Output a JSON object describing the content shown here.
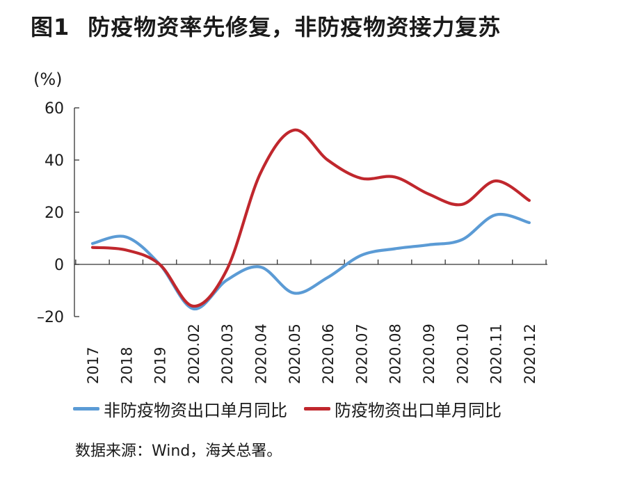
{
  "header": {
    "figure_no": "图1",
    "title": "防疫物资率先修复，非防疫物资接力复苏"
  },
  "source": "数据来源：Wind，海关总署。",
  "chart_data": {
    "type": "line",
    "ylabel": "(%)",
    "ylim": [
      -20,
      60
    ],
    "yticks": [
      "60",
      "40",
      "20",
      "0",
      "–20"
    ],
    "ytick_values": [
      60,
      40,
      20,
      0,
      -20
    ],
    "categories": [
      "2017",
      "2018",
      "2019",
      "2020.02",
      "2020.03",
      "2020.04",
      "2020.05",
      "2020.06",
      "2020.07",
      "2020.08",
      "2020.09",
      "2020.10",
      "2020.11",
      "2020.12"
    ],
    "series": [
      {
        "name": "非防疫物资出口单月同比",
        "color": "#5b9bd5",
        "values": [
          8,
          10.5,
          0,
          -17,
          -6,
          -1,
          -11,
          -5,
          3.5,
          6,
          7.5,
          9.5,
          19,
          16
        ]
      },
      {
        "name": "防疫物资出口单月同比",
        "color": "#c0272d",
        "values": [
          6.5,
          5.5,
          0,
          -16,
          -2,
          35,
          51.5,
          40,
          33,
          33.5,
          27,
          23,
          32,
          24.5
        ]
      }
    ],
    "grid": false,
    "legend_position": "bottom"
  }
}
